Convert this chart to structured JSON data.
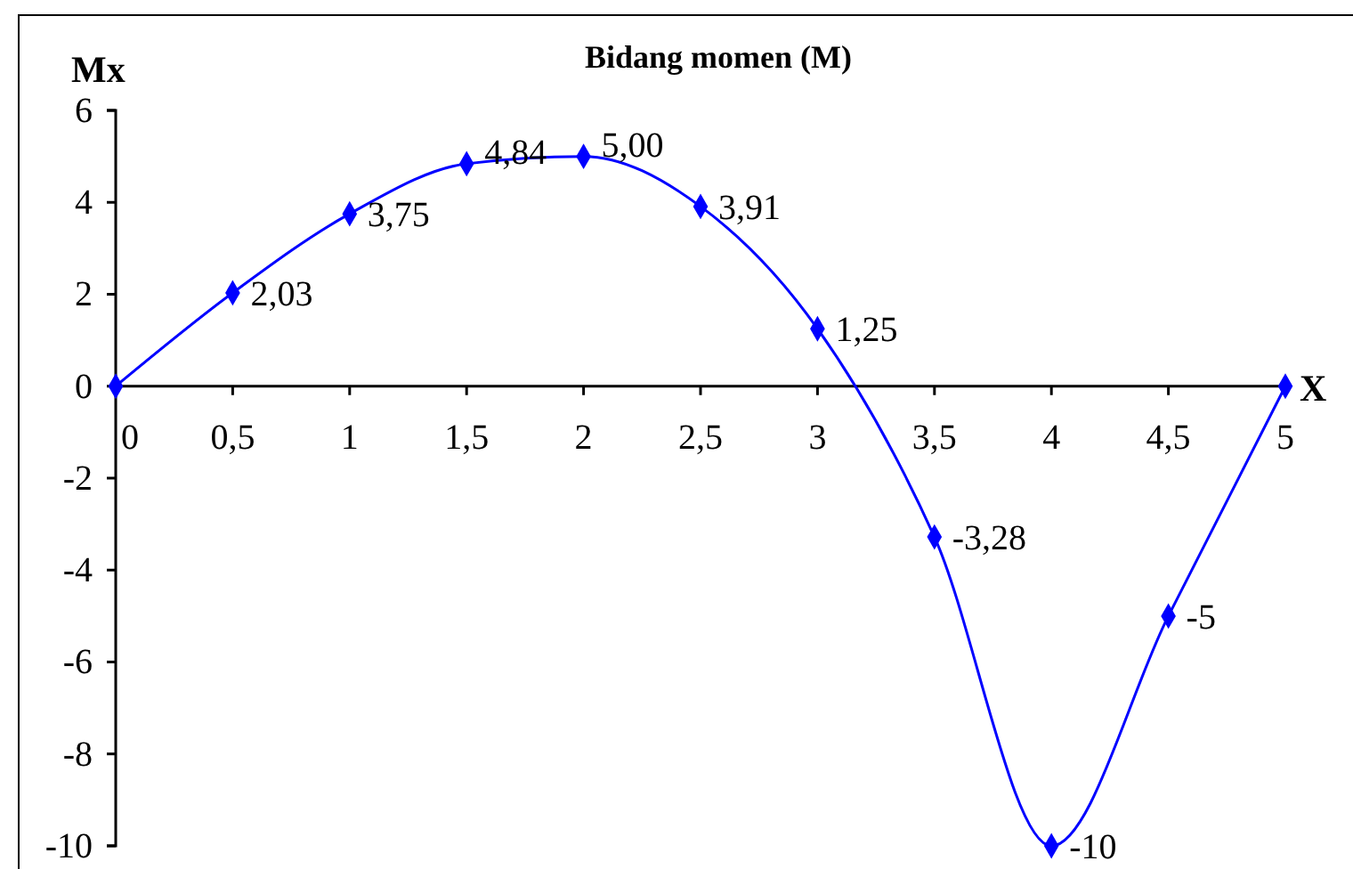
{
  "chart_data": {
    "type": "line",
    "title": "Bidang momen (M)",
    "xlabel": "X",
    "ylabel": "Mx",
    "x": [
      0,
      0.5,
      1,
      1.5,
      2,
      2.5,
      3,
      3.5,
      4,
      4.5,
      5
    ],
    "series": [
      {
        "color": "#0000ff",
        "values": [
          0,
          2.03,
          3.75,
          4.84,
          5.0,
          3.91,
          1.25,
          -3.28,
          -10,
          -5,
          0
        ],
        "value_labels": [
          null,
          "2,03",
          "3,75",
          "4,84",
          "5,00",
          "3,91",
          "1,25",
          "-3,28",
          "-10",
          "-5",
          null
        ]
      }
    ],
    "xlim": [
      0,
      5
    ],
    "ylim": [
      -10,
      6
    ],
    "xticks": [
      0,
      {
        "value": 0.5,
        "label": "0,5"
      },
      1,
      {
        "value": 1.5,
        "label": "1,5"
      },
      2,
      {
        "value": 2.5,
        "label": "2,5"
      },
      3,
      {
        "value": 3.5,
        "label": "3,5"
      },
      4,
      {
        "value": 4.5,
        "label": "4,5"
      },
      5
    ],
    "yticks": [
      -10,
      -8,
      -6,
      -4,
      -2,
      0,
      2,
      4,
      6
    ],
    "marker": "diamond",
    "line_style": "solid",
    "grid": false
  }
}
